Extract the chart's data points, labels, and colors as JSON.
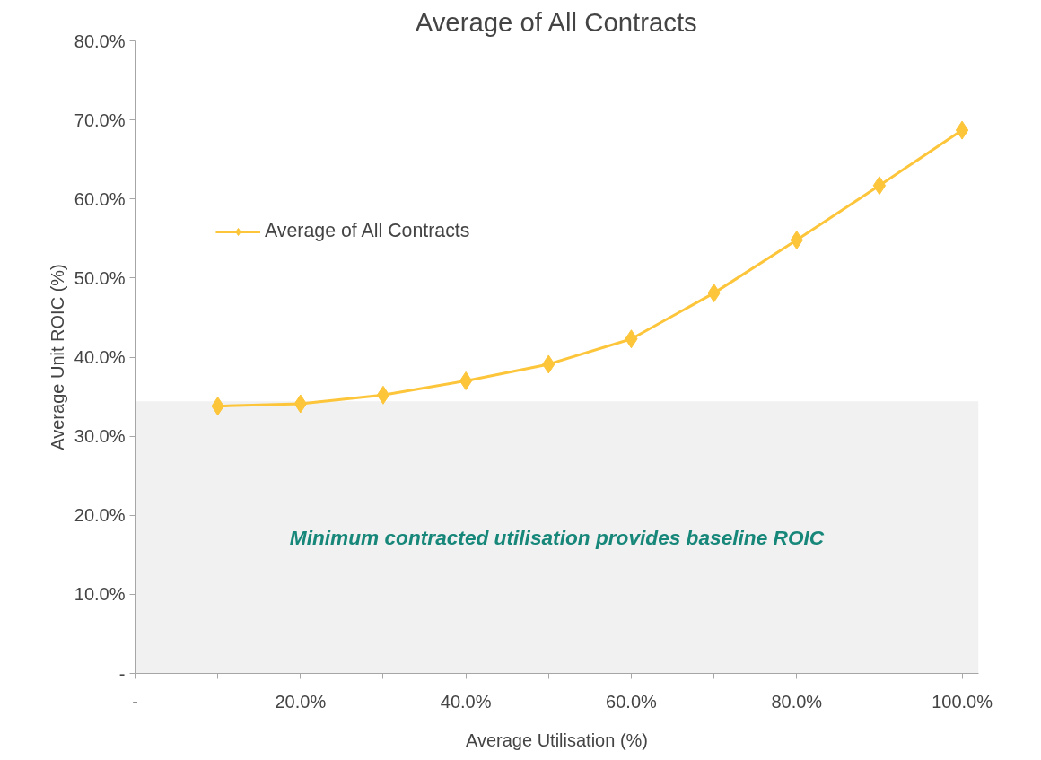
{
  "chart_data": {
    "type": "line",
    "title": "Average of All Contracts",
    "xlabel": "Average Utilisation (%)",
    "ylabel": "Average Unit ROIC (%)",
    "x": [
      10,
      20,
      30,
      40,
      50,
      60,
      70,
      80,
      90,
      100
    ],
    "series": [
      {
        "name": "Average of All Contracts",
        "color": "#fcc53a",
        "values": [
          33.8,
          34.1,
          35.2,
          37.0,
          39.1,
          42.3,
          48.1,
          54.8,
          61.7,
          68.7
        ]
      }
    ],
    "xlim": [
      0,
      102
    ],
    "ylim": [
      0,
      80
    ],
    "xticks": [
      {
        "value": 0,
        "label": "-"
      },
      {
        "value": 10,
        "label": null
      },
      {
        "value": 20,
        "label": "20.0%"
      },
      {
        "value": 30,
        "label": null
      },
      {
        "value": 40,
        "label": "40.0%"
      },
      {
        "value": 50,
        "label": null
      },
      {
        "value": 60,
        "label": "60.0%"
      },
      {
        "value": 70,
        "label": null
      },
      {
        "value": 80,
        "label": "80.0%"
      },
      {
        "value": 90,
        "label": null
      },
      {
        "value": 100,
        "label": "100.0%"
      }
    ],
    "yticks": [
      {
        "value": 0,
        "label": "-"
      },
      {
        "value": 10,
        "label": "10.0%"
      },
      {
        "value": 20,
        "label": "20.0%"
      },
      {
        "value": 30,
        "label": "30.0%"
      },
      {
        "value": 40,
        "label": "40.0%"
      },
      {
        "value": 50,
        "label": "50.0%"
      },
      {
        "value": 60,
        "label": "60.0%"
      },
      {
        "value": 70,
        "label": "70.0%"
      },
      {
        "value": 80,
        "label": "80.0%"
      }
    ],
    "bands": [
      {
        "axis": "y",
        "from": 0,
        "to": 34.4,
        "label": "Minimum contracted utilisation provides baseline ROIC",
        "color": "#f1f1f1"
      }
    ],
    "grid": false,
    "legend": "left",
    "marker": "diamond",
    "line_style": "solid"
  }
}
